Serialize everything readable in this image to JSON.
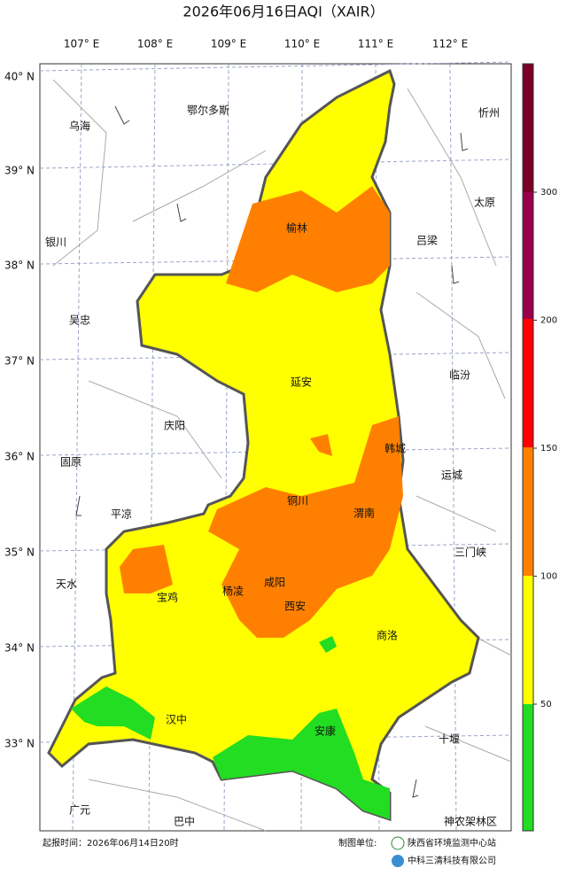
{
  "title": "2026年06月16日AQI（XAIR）",
  "longitudes": [
    "107° E",
    "108° E",
    "109° E",
    "110° E",
    "111° E",
    "112° E"
  ],
  "latitudes": [
    "40° N",
    "39° N",
    "38° N",
    "37° N",
    "36° N",
    "35° N",
    "34° N",
    "33° N"
  ],
  "cities": [
    "乌海",
    "鄂尔多斯",
    "忻州",
    "太原",
    "银川",
    "榆林",
    "吕梁",
    "吴忠",
    "延安",
    "临汾",
    "庆阳",
    "韩城",
    "固原",
    "运城",
    "铜川",
    "平凉",
    "渭南",
    "三门峡",
    "天水",
    "咸阳",
    "宝鸡",
    "杨凌",
    "西安",
    "商洛",
    "汉中",
    "安康",
    "十堰",
    "广元",
    "巴中",
    "神农架林区"
  ],
  "legend": {
    "ticks": [
      50,
      100,
      150,
      200,
      300
    ]
  },
  "footer": {
    "issue_time": "起报时间：2026年06月14日20时",
    "producer_label": "制图单位:",
    "producers": [
      "陕西省环境监测中心站",
      "中科三清科技有限公司"
    ]
  }
}
